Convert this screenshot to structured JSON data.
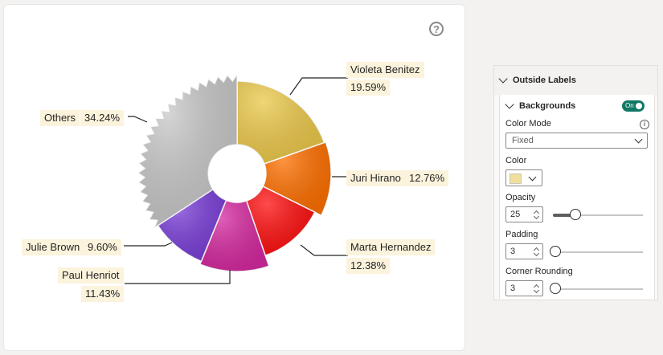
{
  "chart_data": {
    "type": "pie",
    "variant": "donut",
    "slices": [
      {
        "label": "Violeta Benitez",
        "value": 19.59,
        "percent_text": "19.59%",
        "color": "#ecc94b"
      },
      {
        "label": "Juri Hirano",
        "value": 12.76,
        "percent_text": "12.76%",
        "color": "#ff7000"
      },
      {
        "label": "Marta Hernandez",
        "value": 12.38,
        "percent_text": "12.38%",
        "color": "#ff1010"
      },
      {
        "label": "Paul Henriot",
        "value": 11.43,
        "percent_text": "11.43%",
        "color": "#d62aa0"
      },
      {
        "label": "Julie Brown",
        "value": 9.6,
        "percent_text": "9.60%",
        "color": "#7a3fd8"
      },
      {
        "label": "Others",
        "value": 34.24,
        "percent_text": "34.24%",
        "color": "#c8c8c8"
      }
    ]
  },
  "chart": {
    "help_icon": "question-icon",
    "labels": {
      "violeta_name": "Violeta Benitez",
      "violeta_pct": "19.59%",
      "juri_name": "Juri Hirano",
      "juri_pct": "12.76%",
      "marta_name": "Marta Hernandez",
      "marta_pct": "12.38%",
      "paul_name": "Paul Henriot",
      "paul_pct": "11.43%",
      "julie_name": "Julie Brown",
      "julie_pct": "9.60%",
      "others_name": "Others",
      "others_pct": "34.24%"
    }
  },
  "panel": {
    "section_title": "Outside Labels",
    "subsection_title": "Backgrounds",
    "toggle_label": "On",
    "color_mode_label": "Color Mode",
    "color_mode_value": "Fixed",
    "color_label": "Color",
    "color_value": "#f1df9c",
    "opacity_label": "Opacity",
    "opacity_value": "25",
    "opacity_level": 0.25,
    "padding_label": "Padding",
    "padding_value": "3",
    "padding_level": 0.03,
    "corner_label": "Corner Rounding",
    "corner_value": "3",
    "corner_level": 0.03
  }
}
